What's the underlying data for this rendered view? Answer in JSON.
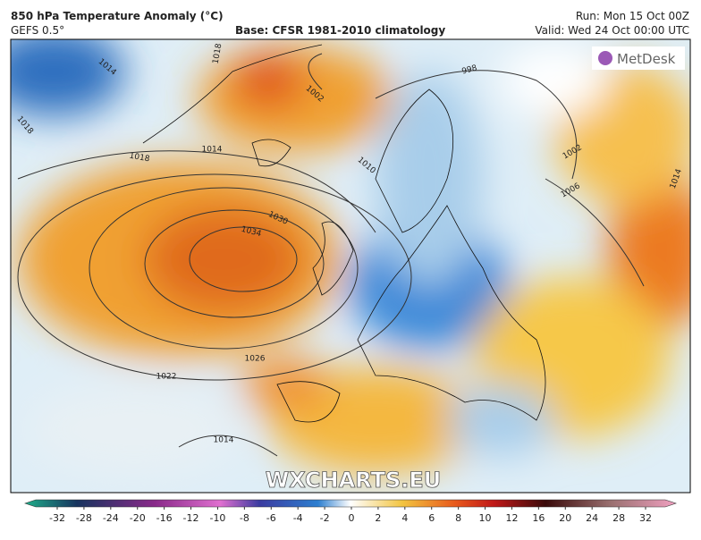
{
  "header": {
    "title": "850 hPa Temperature Anomaly (°C)",
    "model": "GEFS 0.5°",
    "base": "Base: CFSR 1981-2010 climatology",
    "run": "Run: Mon 15 Oct 00Z",
    "valid": "Valid: Wed 24 Oct 00:00 UTC"
  },
  "logo": "MetDesk",
  "watermark": "WXCHARTS.EU",
  "isobar_labels": [
    1018,
    1014,
    1002,
    998,
    1018,
    1014,
    1018,
    1010,
    1002,
    1006,
    1014,
    1030,
    1034,
    1026,
    1022,
    1014
  ],
  "colorbar": {
    "ticks": [
      -32,
      -28,
      -24,
      -20,
      -16,
      -12,
      -10,
      -8,
      -6,
      -4,
      -2,
      0,
      2,
      4,
      6,
      8,
      10,
      12,
      16,
      20,
      24,
      28,
      32
    ]
  }
}
